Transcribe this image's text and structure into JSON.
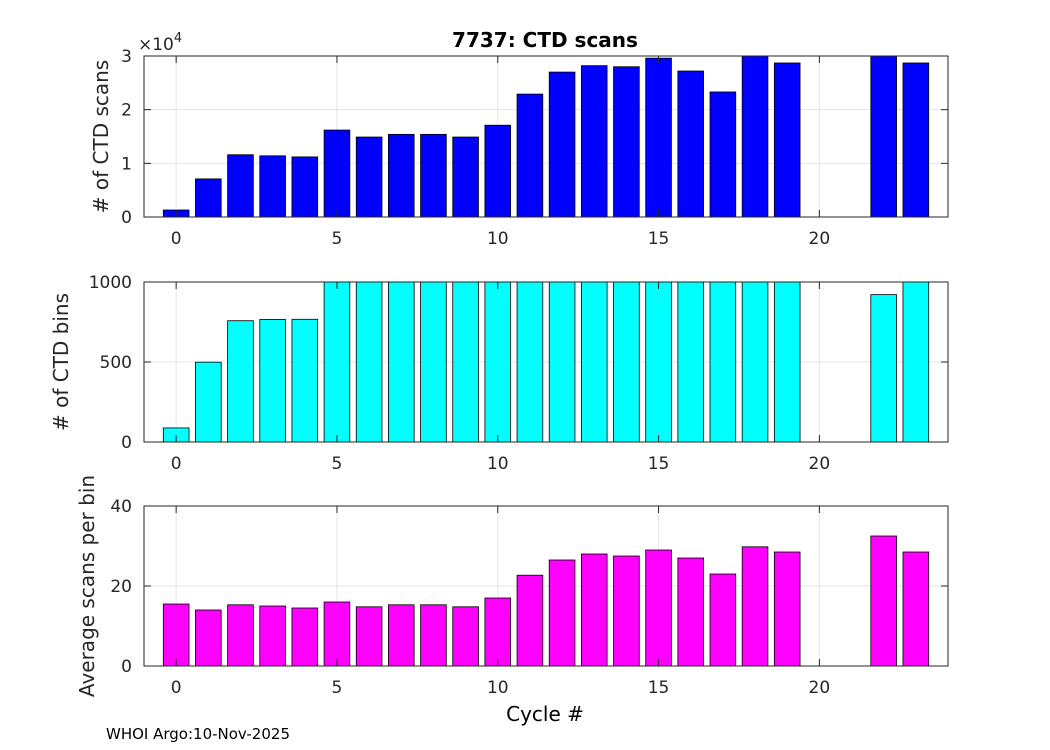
{
  "title": "7737: CTD scans",
  "xlabel": "Cycle #",
  "footer": "WHOI Argo:10-Nov-2025",
  "chart_data": [
    {
      "type": "bar",
      "title": "7737: CTD scans",
      "ylabel": "# of CTD scans",
      "xlabel": "",
      "exponent_label": "×10",
      "exponent_power": "4",
      "color": "#0000ff",
      "xlim": [
        -1,
        24
      ],
      "ylim": [
        0,
        3
      ],
      "xticks": [
        0,
        5,
        10,
        15,
        20
      ],
      "yticks": [
        0,
        1,
        2,
        3
      ],
      "x": [
        0,
        1,
        2,
        3,
        4,
        5,
        6,
        7,
        8,
        9,
        10,
        11,
        12,
        13,
        14,
        15,
        16,
        17,
        18,
        19,
        22,
        23
      ],
      "values": [
        0.13,
        0.71,
        1.16,
        1.14,
        1.12,
        1.62,
        1.49,
        1.54,
        1.54,
        1.49,
        1.71,
        2.29,
        2.7,
        2.82,
        2.8,
        2.96,
        2.72,
        2.33,
        3.01,
        2.87,
        3.03,
        2.87
      ]
    },
    {
      "type": "bar",
      "ylabel": "# of CTD bins",
      "xlabel": "",
      "color": "#00ffff",
      "xlim": [
        -1,
        24
      ],
      "ylim": [
        0,
        1000
      ],
      "xticks": [
        0,
        5,
        10,
        15,
        20
      ],
      "yticks": [
        0,
        500,
        1000
      ],
      "x": [
        0,
        1,
        2,
        3,
        4,
        5,
        6,
        7,
        8,
        9,
        10,
        11,
        12,
        13,
        14,
        15,
        16,
        17,
        18,
        19,
        22,
        23
      ],
      "values": [
        88,
        499,
        758,
        766,
        767,
        1010,
        1010,
        1010,
        1010,
        1010,
        1010,
        1010,
        1012,
        1010,
        1012,
        1012,
        1010,
        1010,
        1010,
        1010,
        921,
        1010
      ]
    },
    {
      "type": "bar",
      "ylabel": "Average scans per bin",
      "xlabel": "Cycle #",
      "color": "#ff00ff",
      "xlim": [
        -1,
        24
      ],
      "ylim": [
        0,
        40
      ],
      "xticks": [
        0,
        5,
        10,
        15,
        20
      ],
      "yticks": [
        0,
        20,
        40
      ],
      "x": [
        0,
        1,
        2,
        3,
        4,
        5,
        6,
        7,
        8,
        9,
        10,
        11,
        12,
        13,
        14,
        15,
        16,
        17,
        18,
        19,
        22,
        23
      ],
      "values": [
        15.5,
        14.0,
        15.3,
        15.0,
        14.5,
        16.0,
        14.8,
        15.3,
        15.3,
        14.8,
        17.0,
        22.7,
        26.5,
        28.0,
        27.5,
        29.0,
        27.0,
        23.0,
        29.8,
        28.5,
        32.5,
        28.5
      ]
    }
  ]
}
